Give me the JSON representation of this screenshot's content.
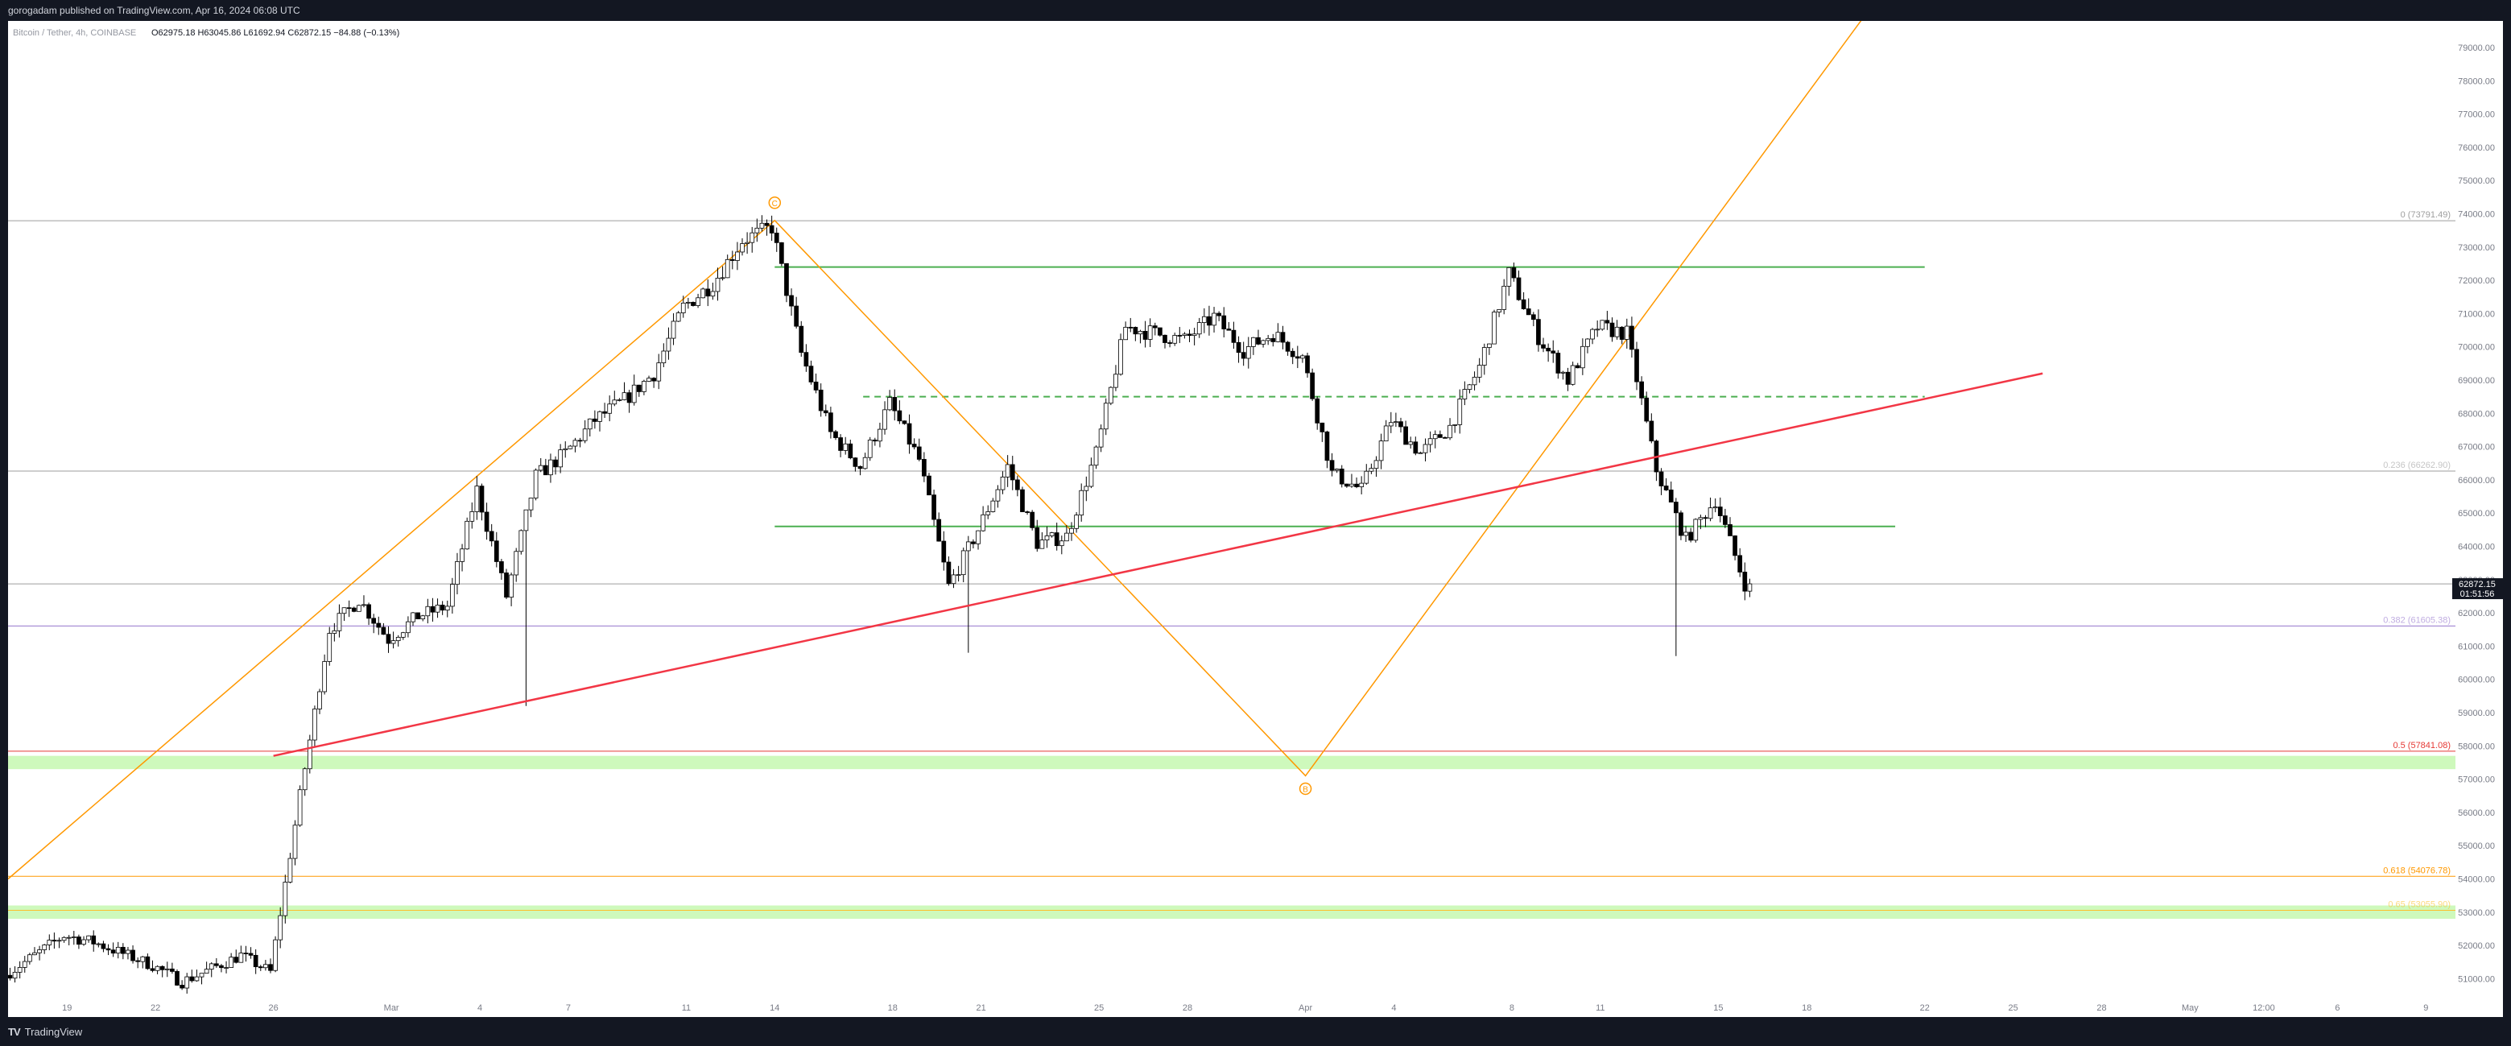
{
  "header": {
    "publish_text": "gorogadam published on TradingView.com, Apr 16, 2024 06:08 UTC"
  },
  "legend": {
    "symbol": "Bitcoin / Tether, 4h, COINBASE",
    "ohlc": "O62975.18  H63045.86  L61692.94  C62872.15  −84.88 (−0.13%)"
  },
  "footer": {
    "brand": "TradingView"
  },
  "price_tag": {
    "price": "62872.15",
    "countdown": "01:51:56"
  },
  "colors": {
    "background": "#ffffff",
    "frame": "#131722",
    "candle_up": "#ffffff",
    "candle_down": "#000000",
    "wick": "#000000",
    "fib_gray": "#9e9e9e",
    "fib_0_5": "#e53935",
    "fib_0_618": "#ff9800",
    "fib_0_65": "#fbc02d",
    "fib_0_382": "#9575cd",
    "trend_red": "#f23645",
    "abc_orange": "#ff9800",
    "range_green": "#4caf50",
    "zone_green": "#b9f6a0"
  },
  "chart_data": {
    "type": "candlestick",
    "title": "Bitcoin / Tether, 4h, COINBASE",
    "interval": "4h",
    "ylim": [
      50500,
      79800
    ],
    "y_ticks": [
      "79000.00",
      "78000.00",
      "77000.00",
      "76000.00",
      "75000.00",
      "74000.00",
      "73000.00",
      "72000.00",
      "71000.00",
      "70000.00",
      "69000.00",
      "68000.00",
      "67000.00",
      "66000.00",
      "65000.00",
      "64000.00",
      "63000.00",
      "62000.00",
      "61000.00",
      "60000.00",
      "59000.00",
      "58000.00",
      "57000.00",
      "56000.00",
      "55000.00",
      "54000.00",
      "53000.00",
      "52000.00",
      "51000.00"
    ],
    "x_tick_labels": [
      "19",
      "22",
      "26",
      "Mar",
      "4",
      "7",
      "11",
      "14",
      "18",
      "21",
      "25",
      "28",
      "Apr",
      "4",
      "8",
      "11",
      "15",
      "18",
      "22",
      "25",
      "28",
      "May",
      "12:00",
      "6",
      "9"
    ],
    "x_tick_dates": [
      "2024-02-19",
      "2024-02-22",
      "2024-02-26",
      "2024-03-01",
      "2024-03-04",
      "2024-03-07",
      "2024-03-11",
      "2024-03-14",
      "2024-03-18",
      "2024-03-21",
      "2024-03-25",
      "2024-03-28",
      "2024-04-01",
      "2024-04-04",
      "2024-04-08",
      "2024-04-11",
      "2024-04-15",
      "2024-04-18",
      "2024-04-22",
      "2024-04-25",
      "2024-04-28",
      "2024-05-01",
      "2024-05-03 12:00",
      "2024-05-06",
      "2024-05-09"
    ],
    "ohlc_last": {
      "open": 62975.18,
      "high": 63045.86,
      "low": 61692.94,
      "close": 62872.15,
      "change": -84.88,
      "change_pct": -0.13
    },
    "path_points": [
      [
        "2024-02-17",
        51100
      ],
      [
        "2024-02-19",
        52300
      ],
      [
        "2024-02-20",
        52100
      ],
      [
        "2024-02-22",
        51400
      ],
      [
        "2024-02-23",
        50900
      ],
      [
        "2024-02-25",
        51700
      ],
      [
        "2024-02-26",
        51200
      ],
      [
        "2024-02-27",
        56500
      ],
      [
        "2024-02-28",
        61500
      ],
      [
        "2024-02-29",
        62400
      ],
      [
        "2024-03-01",
        61200
      ],
      [
        "2024-03-02",
        61900
      ],
      [
        "2024-03-03",
        62200
      ],
      [
        "2024-03-04",
        65700
      ],
      [
        "2024-03-05",
        62500
      ],
      [
        "2024-03-06",
        66100
      ],
      [
        "2024-03-07",
        66800
      ],
      [
        "2024-03-08",
        67800
      ],
      [
        "2024-03-09",
        68400
      ],
      [
        "2024-03-10",
        69200
      ],
      [
        "2024-03-11",
        71200
      ],
      [
        "2024-03-12",
        71900
      ],
      [
        "2024-03-13",
        73200
      ],
      [
        "2024-03-14",
        73600
      ],
      [
        "2024-03-15",
        69800
      ],
      [
        "2024-03-16",
        67400
      ],
      [
        "2024-03-17",
        66400
      ],
      [
        "2024-03-18",
        68300
      ],
      [
        "2024-03-19",
        66600
      ],
      [
        "2024-03-20",
        62800
      ],
      [
        "2024-03-21",
        64500
      ],
      [
        "2024-03-22",
        66400
      ],
      [
        "2024-03-23",
        64100
      ],
      [
        "2024-03-24",
        64300
      ],
      [
        "2024-03-25",
        66800
      ],
      [
        "2024-03-26",
        70600
      ],
      [
        "2024-03-27",
        70400
      ],
      [
        "2024-03-28",
        70200
      ],
      [
        "2024-03-29",
        70900
      ],
      [
        "2024-03-30",
        69900
      ],
      [
        "2024-03-31",
        70400
      ],
      [
        "2024-04-01",
        69700
      ],
      [
        "2024-04-02",
        66200
      ],
      [
        "2024-04-03",
        65700
      ],
      [
        "2024-04-04",
        67800
      ],
      [
        "2024-04-05",
        66800
      ],
      [
        "2024-04-06",
        67600
      ],
      [
        "2024-04-07",
        69400
      ],
      [
        "2024-04-08",
        72200
      ],
      [
        "2024-04-09",
        70300
      ],
      [
        "2024-04-10",
        69000
      ],
      [
        "2024-04-11",
        70600
      ],
      [
        "2024-04-12",
        70400
      ],
      [
        "2024-04-13",
        66300
      ],
      [
        "2024-04-14",
        64200
      ],
      [
        "2024-04-15",
        65400
      ],
      [
        "2024-04-16",
        62872
      ]
    ],
    "spikes": [
      {
        "date": "2024-03-05",
        "low": 59200
      },
      {
        "date": "2024-04-13",
        "low": 60700
      },
      {
        "date": "2024-03-20",
        "low": 60800
      }
    ],
    "annotations": {
      "fib_levels": [
        {
          "label": "0 (73791.49)",
          "price": 73791.49
        },
        {
          "label": "0.236 (66262.90)",
          "price": 66262.9
        },
        {
          "label": "0.382 (61605.38)",
          "price": 61605.38
        },
        {
          "label": "0.5 (57841.08)",
          "price": 57841.08
        },
        {
          "label": "0.618 (54076.78)",
          "price": 54076.78
        },
        {
          "label": "0.65 (53055.90)",
          "price": 53055.9
        }
      ],
      "current_price_line": 62872.15,
      "horizontal_rays": [
        {
          "label": "range-top",
          "price": 72400,
          "from": "2024-03-14",
          "to": "2024-04-22",
          "style": "solid"
        },
        {
          "label": "range-mid",
          "price": 68500,
          "from": "2024-03-17",
          "to": "2024-04-22",
          "style": "dashed"
        },
        {
          "label": "range-bottom",
          "price": 64600,
          "from": "2024-03-14",
          "to": "2024-04-21",
          "style": "solid"
        }
      ],
      "zones": [
        {
          "from": 57300,
          "to": 57700
        },
        {
          "from": 52800,
          "to": 53200
        }
      ],
      "trendline": {
        "p1": [
          "2024-02-26",
          57700
        ],
        "p2": [
          "2024-04-26",
          69200
        ]
      },
      "abc_waves": {
        "points": [
          [
            "2024-02-17",
            54000
          ],
          [
            "2024-03-14",
            73800
          ],
          [
            "2024-04-01",
            57100
          ],
          [
            "2024-04-20",
            80000
          ]
        ],
        "labels": [
          {
            "text": "C",
            "date": "2024-03-14",
            "price": 73800
          },
          {
            "text": "B",
            "date": "2024-04-01",
            "price": 57100
          }
        ]
      }
    }
  }
}
